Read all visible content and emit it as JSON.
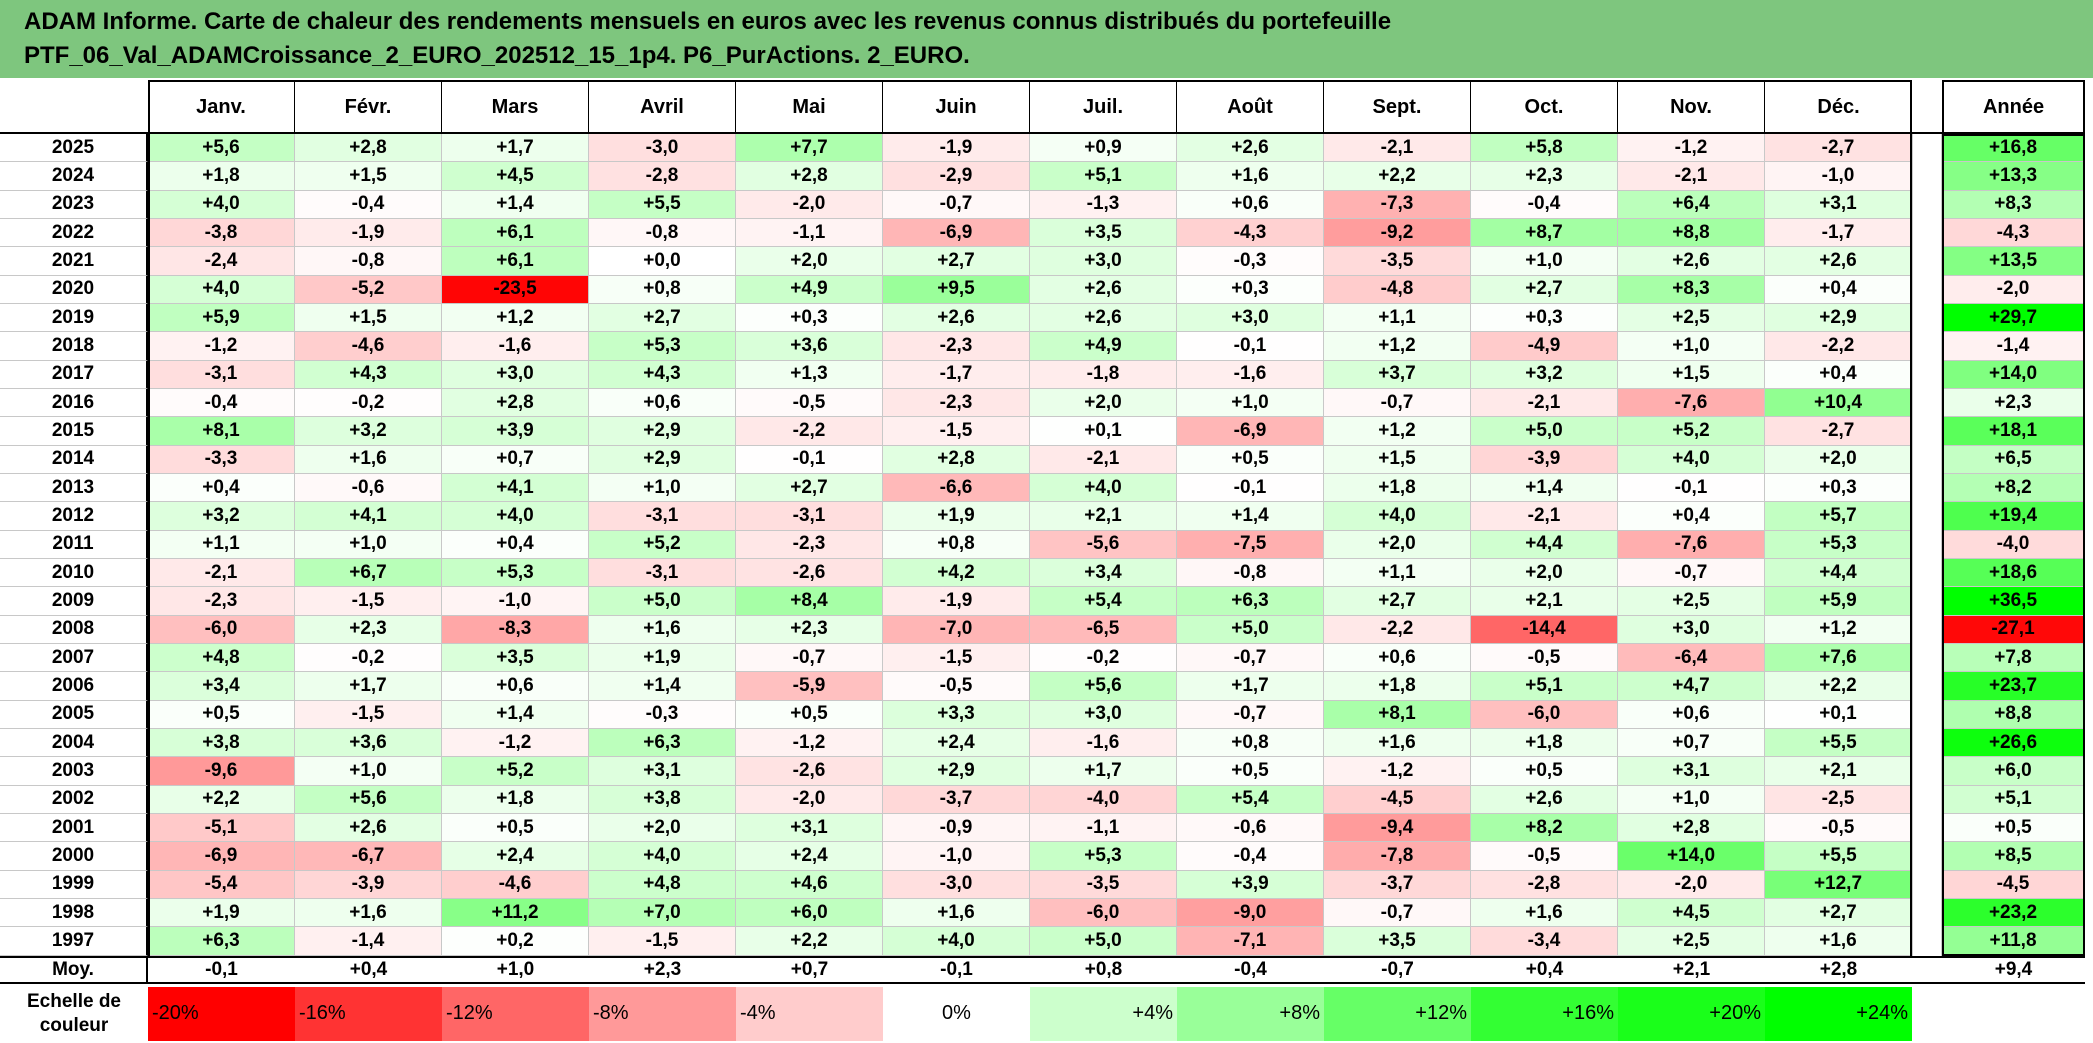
{
  "title_line1": "ADAM Informe. Carte de chaleur des rendements mensuels en euros avec les revenus connus distribués du portefeuille",
  "title_line2": "PTF_06_Val_ADAMCroissance_2_EURO_202512_15_1p4. P6_PurActions. 2_EURO.",
  "chart_data": {
    "type": "heatmap",
    "columns": [
      "Janv.",
      "Févr.",
      "Mars",
      "Avril",
      "Mai",
      "Juin",
      "Juil.",
      "Août",
      "Sept.",
      "Oct.",
      "Nov.",
      "Déc."
    ],
    "annual_column": "Année",
    "rows": [
      {
        "year": "2025",
        "values": [
          "+5,6",
          "+2,8",
          "+1,7",
          "-3,0",
          "+7,7",
          "-1,9",
          "+0,9",
          "+2,6",
          "-2,1",
          "+5,8",
          "-1,2",
          "-2,7"
        ],
        "annual": "+16,8"
      },
      {
        "year": "2024",
        "values": [
          "+1,8",
          "+1,5",
          "+4,5",
          "-2,8",
          "+2,8",
          "-2,9",
          "+5,1",
          "+1,6",
          "+2,2",
          "+2,3",
          "-2,1",
          "-1,0"
        ],
        "annual": "+13,3"
      },
      {
        "year": "2023",
        "values": [
          "+4,0",
          "-0,4",
          "+1,4",
          "+5,5",
          "-2,0",
          "-0,7",
          "-1,3",
          "+0,6",
          "-7,3",
          "-0,4",
          "+6,4",
          "+3,1"
        ],
        "annual": "+8,3"
      },
      {
        "year": "2022",
        "values": [
          "-3,8",
          "-1,9",
          "+6,1",
          "-0,8",
          "-1,1",
          "-6,9",
          "+3,5",
          "-4,3",
          "-9,2",
          "+8,7",
          "+8,8",
          "-1,7"
        ],
        "annual": "-4,3"
      },
      {
        "year": "2021",
        "values": [
          "-2,4",
          "-0,8",
          "+6,1",
          "+0,0",
          "+2,0",
          "+2,7",
          "+3,0",
          "-0,3",
          "-3,5",
          "+1,0",
          "+2,6",
          "+2,6"
        ],
        "annual": "+13,5"
      },
      {
        "year": "2020",
        "values": [
          "+4,0",
          "-5,2",
          "-23,5",
          "+0,8",
          "+4,9",
          "+9,5",
          "+2,6",
          "+0,3",
          "-4,8",
          "+2,7",
          "+8,3",
          "+0,4"
        ],
        "annual": "-2,0"
      },
      {
        "year": "2019",
        "values": [
          "+5,9",
          "+1,5",
          "+1,2",
          "+2,7",
          "+0,3",
          "+2,6",
          "+2,6",
          "+3,0",
          "+1,1",
          "+0,3",
          "+2,5",
          "+2,9"
        ],
        "annual": "+29,7"
      },
      {
        "year": "2018",
        "values": [
          "-1,2",
          "-4,6",
          "-1,6",
          "+5,3",
          "+3,6",
          "-2,3",
          "+4,9",
          "-0,1",
          "+1,2",
          "-4,9",
          "+1,0",
          "-2,2"
        ],
        "annual": "-1,4"
      },
      {
        "year": "2017",
        "values": [
          "-3,1",
          "+4,3",
          "+3,0",
          "+4,3",
          "+1,3",
          "-1,7",
          "-1,8",
          "-1,6",
          "+3,7",
          "+3,2",
          "+1,5",
          "+0,4"
        ],
        "annual": "+14,0"
      },
      {
        "year": "2016",
        "values": [
          "-0,4",
          "-0,2",
          "+2,8",
          "+0,6",
          "-0,5",
          "-2,3",
          "+2,0",
          "+1,0",
          "-0,7",
          "-2,1",
          "-7,6",
          "+10,4"
        ],
        "annual": "+2,3"
      },
      {
        "year": "2015",
        "values": [
          "+8,1",
          "+3,2",
          "+3,9",
          "+2,9",
          "-2,2",
          "-1,5",
          "+0,1",
          "-6,9",
          "+1,2",
          "+5,0",
          "+5,2",
          "-2,7"
        ],
        "annual": "+18,1"
      },
      {
        "year": "2014",
        "values": [
          "-3,3",
          "+1,6",
          "+0,7",
          "+2,9",
          "-0,1",
          "+2,8",
          "-2,1",
          "+0,5",
          "+1,5",
          "-3,9",
          "+4,0",
          "+2,0"
        ],
        "annual": "+6,5"
      },
      {
        "year": "2013",
        "values": [
          "+0,4",
          "-0,6",
          "+4,1",
          "+1,0",
          "+2,7",
          "-6,6",
          "+4,0",
          "-0,1",
          "+1,8",
          "+1,4",
          "-0,1",
          "+0,3"
        ],
        "annual": "+8,2"
      },
      {
        "year": "2012",
        "values": [
          "+3,2",
          "+4,1",
          "+4,0",
          "-3,1",
          "-3,1",
          "+1,9",
          "+2,1",
          "+1,4",
          "+4,0",
          "-2,1",
          "+0,4",
          "+5,7"
        ],
        "annual": "+19,4"
      },
      {
        "year": "2011",
        "values": [
          "+1,1",
          "+1,0",
          "+0,4",
          "+5,2",
          "-2,3",
          "+0,8",
          "-5,6",
          "-7,5",
          "+2,0",
          "+4,4",
          "-7,6",
          "+5,3"
        ],
        "annual": "-4,0"
      },
      {
        "year": "2010",
        "values": [
          "-2,1",
          "+6,7",
          "+5,3",
          "-3,1",
          "-2,6",
          "+4,2",
          "+3,4",
          "-0,8",
          "+1,1",
          "+2,0",
          "-0,7",
          "+4,4"
        ],
        "annual": "+18,6"
      },
      {
        "year": "2009",
        "values": [
          "-2,3",
          "-1,5",
          "-1,0",
          "+5,0",
          "+8,4",
          "-1,9",
          "+5,4",
          "+6,3",
          "+2,7",
          "+2,1",
          "+2,5",
          "+5,9"
        ],
        "annual": "+36,5"
      },
      {
        "year": "2008",
        "values": [
          "-6,0",
          "+2,3",
          "-8,3",
          "+1,6",
          "+2,3",
          "-7,0",
          "-6,5",
          "+5,0",
          "-2,2",
          "-14,4",
          "+3,0",
          "+1,2"
        ],
        "annual": "-27,1"
      },
      {
        "year": "2007",
        "values": [
          "+4,8",
          "-0,2",
          "+3,5",
          "+1,9",
          "-0,7",
          "-1,5",
          "-0,2",
          "-0,7",
          "+0,6",
          "-0,5",
          "-6,4",
          "+7,6"
        ],
        "annual": "+7,8"
      },
      {
        "year": "2006",
        "values": [
          "+3,4",
          "+1,7",
          "+0,6",
          "+1,4",
          "-5,9",
          "-0,5",
          "+5,6",
          "+1,7",
          "+1,8",
          "+5,1",
          "+4,7",
          "+2,2"
        ],
        "annual": "+23,7"
      },
      {
        "year": "2005",
        "values": [
          "+0,5",
          "-1,5",
          "+1,4",
          "-0,3",
          "+0,5",
          "+3,3",
          "+3,0",
          "-0,7",
          "+8,1",
          "-6,0",
          "+0,6",
          "+0,1"
        ],
        "annual": "+8,8"
      },
      {
        "year": "2004",
        "values": [
          "+3,8",
          "+3,6",
          "-1,2",
          "+6,3",
          "-1,2",
          "+2,4",
          "-1,6",
          "+0,8",
          "+1,6",
          "+1,8",
          "+0,7",
          "+5,5"
        ],
        "annual": "+26,6"
      },
      {
        "year": "2003",
        "values": [
          "-9,6",
          "+1,0",
          "+5,2",
          "+3,1",
          "-2,6",
          "+2,9",
          "+1,7",
          "+0,5",
          "-1,2",
          "+0,5",
          "+3,1",
          "+2,1"
        ],
        "annual": "+6,0"
      },
      {
        "year": "2002",
        "values": [
          "+2,2",
          "+5,6",
          "+1,8",
          "+3,8",
          "-2,0",
          "-3,7",
          "-4,0",
          "+5,4",
          "-4,5",
          "+2,6",
          "+1,0",
          "-2,5"
        ],
        "annual": "+5,1"
      },
      {
        "year": "2001",
        "values": [
          "-5,1",
          "+2,6",
          "+0,5",
          "+2,0",
          "+3,1",
          "-0,9",
          "-1,1",
          "-0,6",
          "-9,4",
          "+8,2",
          "+2,8",
          "-0,5"
        ],
        "annual": "+0,5"
      },
      {
        "year": "2000",
        "values": [
          "-6,9",
          "-6,7",
          "+2,4",
          "+4,0",
          "+2,4",
          "-1,0",
          "+5,3",
          "-0,4",
          "-7,8",
          "-0,5",
          "+14,0",
          "+5,5"
        ],
        "annual": "+8,5"
      },
      {
        "year": "1999",
        "values": [
          "-5,4",
          "-3,9",
          "-4,6",
          "+4,8",
          "+4,6",
          "-3,0",
          "-3,5",
          "+3,9",
          "-3,7",
          "-2,8",
          "-2,0",
          "+12,7"
        ],
        "annual": "-4,5"
      },
      {
        "year": "1998",
        "values": [
          "+1,9",
          "+1,6",
          "+11,2",
          "+7,0",
          "+6,0",
          "+1,6",
          "-6,0",
          "-9,0",
          "-0,7",
          "+1,6",
          "+4,5",
          "+2,7"
        ],
        "annual": "+23,2"
      },
      {
        "year": "1997",
        "values": [
          "+6,3",
          "-1,4",
          "+0,2",
          "-1,5",
          "+2,2",
          "+4,0",
          "+5,0",
          "-7,1",
          "+3,5",
          "-3,4",
          "+2,5",
          "+1,6"
        ],
        "annual": "+11,8"
      }
    ],
    "average_row": {
      "label": "Moy.",
      "values": [
        "-0,1",
        "+0,4",
        "+1,0",
        "+2,3",
        "+0,7",
        "-0,1",
        "+0,8",
        "-0,4",
        "-0,7",
        "+0,4",
        "+2,1",
        "+2,8"
      ],
      "annual": "+9,4"
    },
    "scale": {
      "label_line1": "Echelle de",
      "label_line2": "couleur",
      "stops": [
        {
          "label": "-20%",
          "value": -20,
          "color": "#ff0000"
        },
        {
          "label": "-16%",
          "value": -16,
          "color": "#ff3333"
        },
        {
          "label": "-12%",
          "value": -12,
          "color": "#ff6666"
        },
        {
          "label": "-8%",
          "value": -8,
          "color": "#ff9999"
        },
        {
          "label": "-4%",
          "value": -4,
          "color": "#ffcccc"
        },
        {
          "label": "0%",
          "value": 0,
          "color": "#ffffff"
        },
        {
          "label": "+4%",
          "value": 4,
          "color": "#ccffcc"
        },
        {
          "label": "+8%",
          "value": 8,
          "color": "#99ff99"
        },
        {
          "label": "+12%",
          "value": 12,
          "color": "#66ff66"
        },
        {
          "label": "+16%",
          "value": 16,
          "color": "#33ff33"
        },
        {
          "label": "+20%",
          "value": 20,
          "color": "#1aff1a"
        },
        {
          "label": "+24%",
          "value": 24,
          "color": "#00ff00"
        }
      ]
    }
  }
}
